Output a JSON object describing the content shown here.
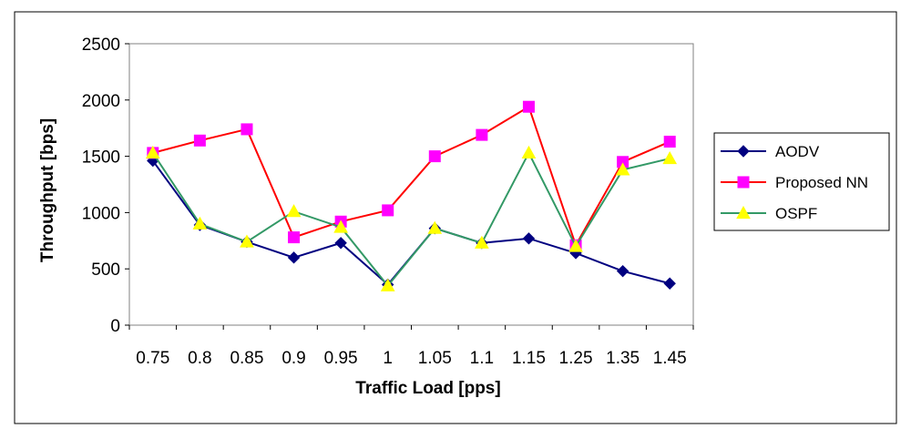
{
  "chart_data": {
    "type": "line",
    "title": "",
    "xlabel": "Traffic Load [pps]",
    "ylabel": "Throughput  [bps]",
    "categories": [
      "0.75",
      "0.8",
      "0.85",
      "0.9",
      "0.95",
      "1",
      "1.05",
      "1.1",
      "1.15",
      "1.25",
      "1.35",
      "1.45"
    ],
    "ylim": [
      0,
      2500
    ],
    "yticks": [
      "0",
      "500",
      "1000",
      "1500",
      "2000",
      "2500"
    ],
    "grid": "none",
    "legend_position": "right",
    "series": [
      {
        "name": "AODV",
        "color": "#000080",
        "marker": "diamond",
        "marker_color": "#000080",
        "values": [
          1460,
          890,
          740,
          600,
          730,
          360,
          860,
          730,
          770,
          640,
          480,
          370
        ]
      },
      {
        "name": "Proposed NN",
        "color": "#ff0000",
        "marker": "square",
        "marker_color": "#ff00ff",
        "values": [
          1530,
          1640,
          1740,
          780,
          920,
          1020,
          1500,
          1690,
          1940,
          710,
          1450,
          1630
        ]
      },
      {
        "name": "OSPF",
        "color": "#339966",
        "marker": "triangle",
        "marker_color": "#ffff00",
        "values": [
          1530,
          900,
          740,
          1010,
          870,
          350,
          860,
          730,
          1530,
          700,
          1380,
          1480
        ]
      }
    ]
  }
}
